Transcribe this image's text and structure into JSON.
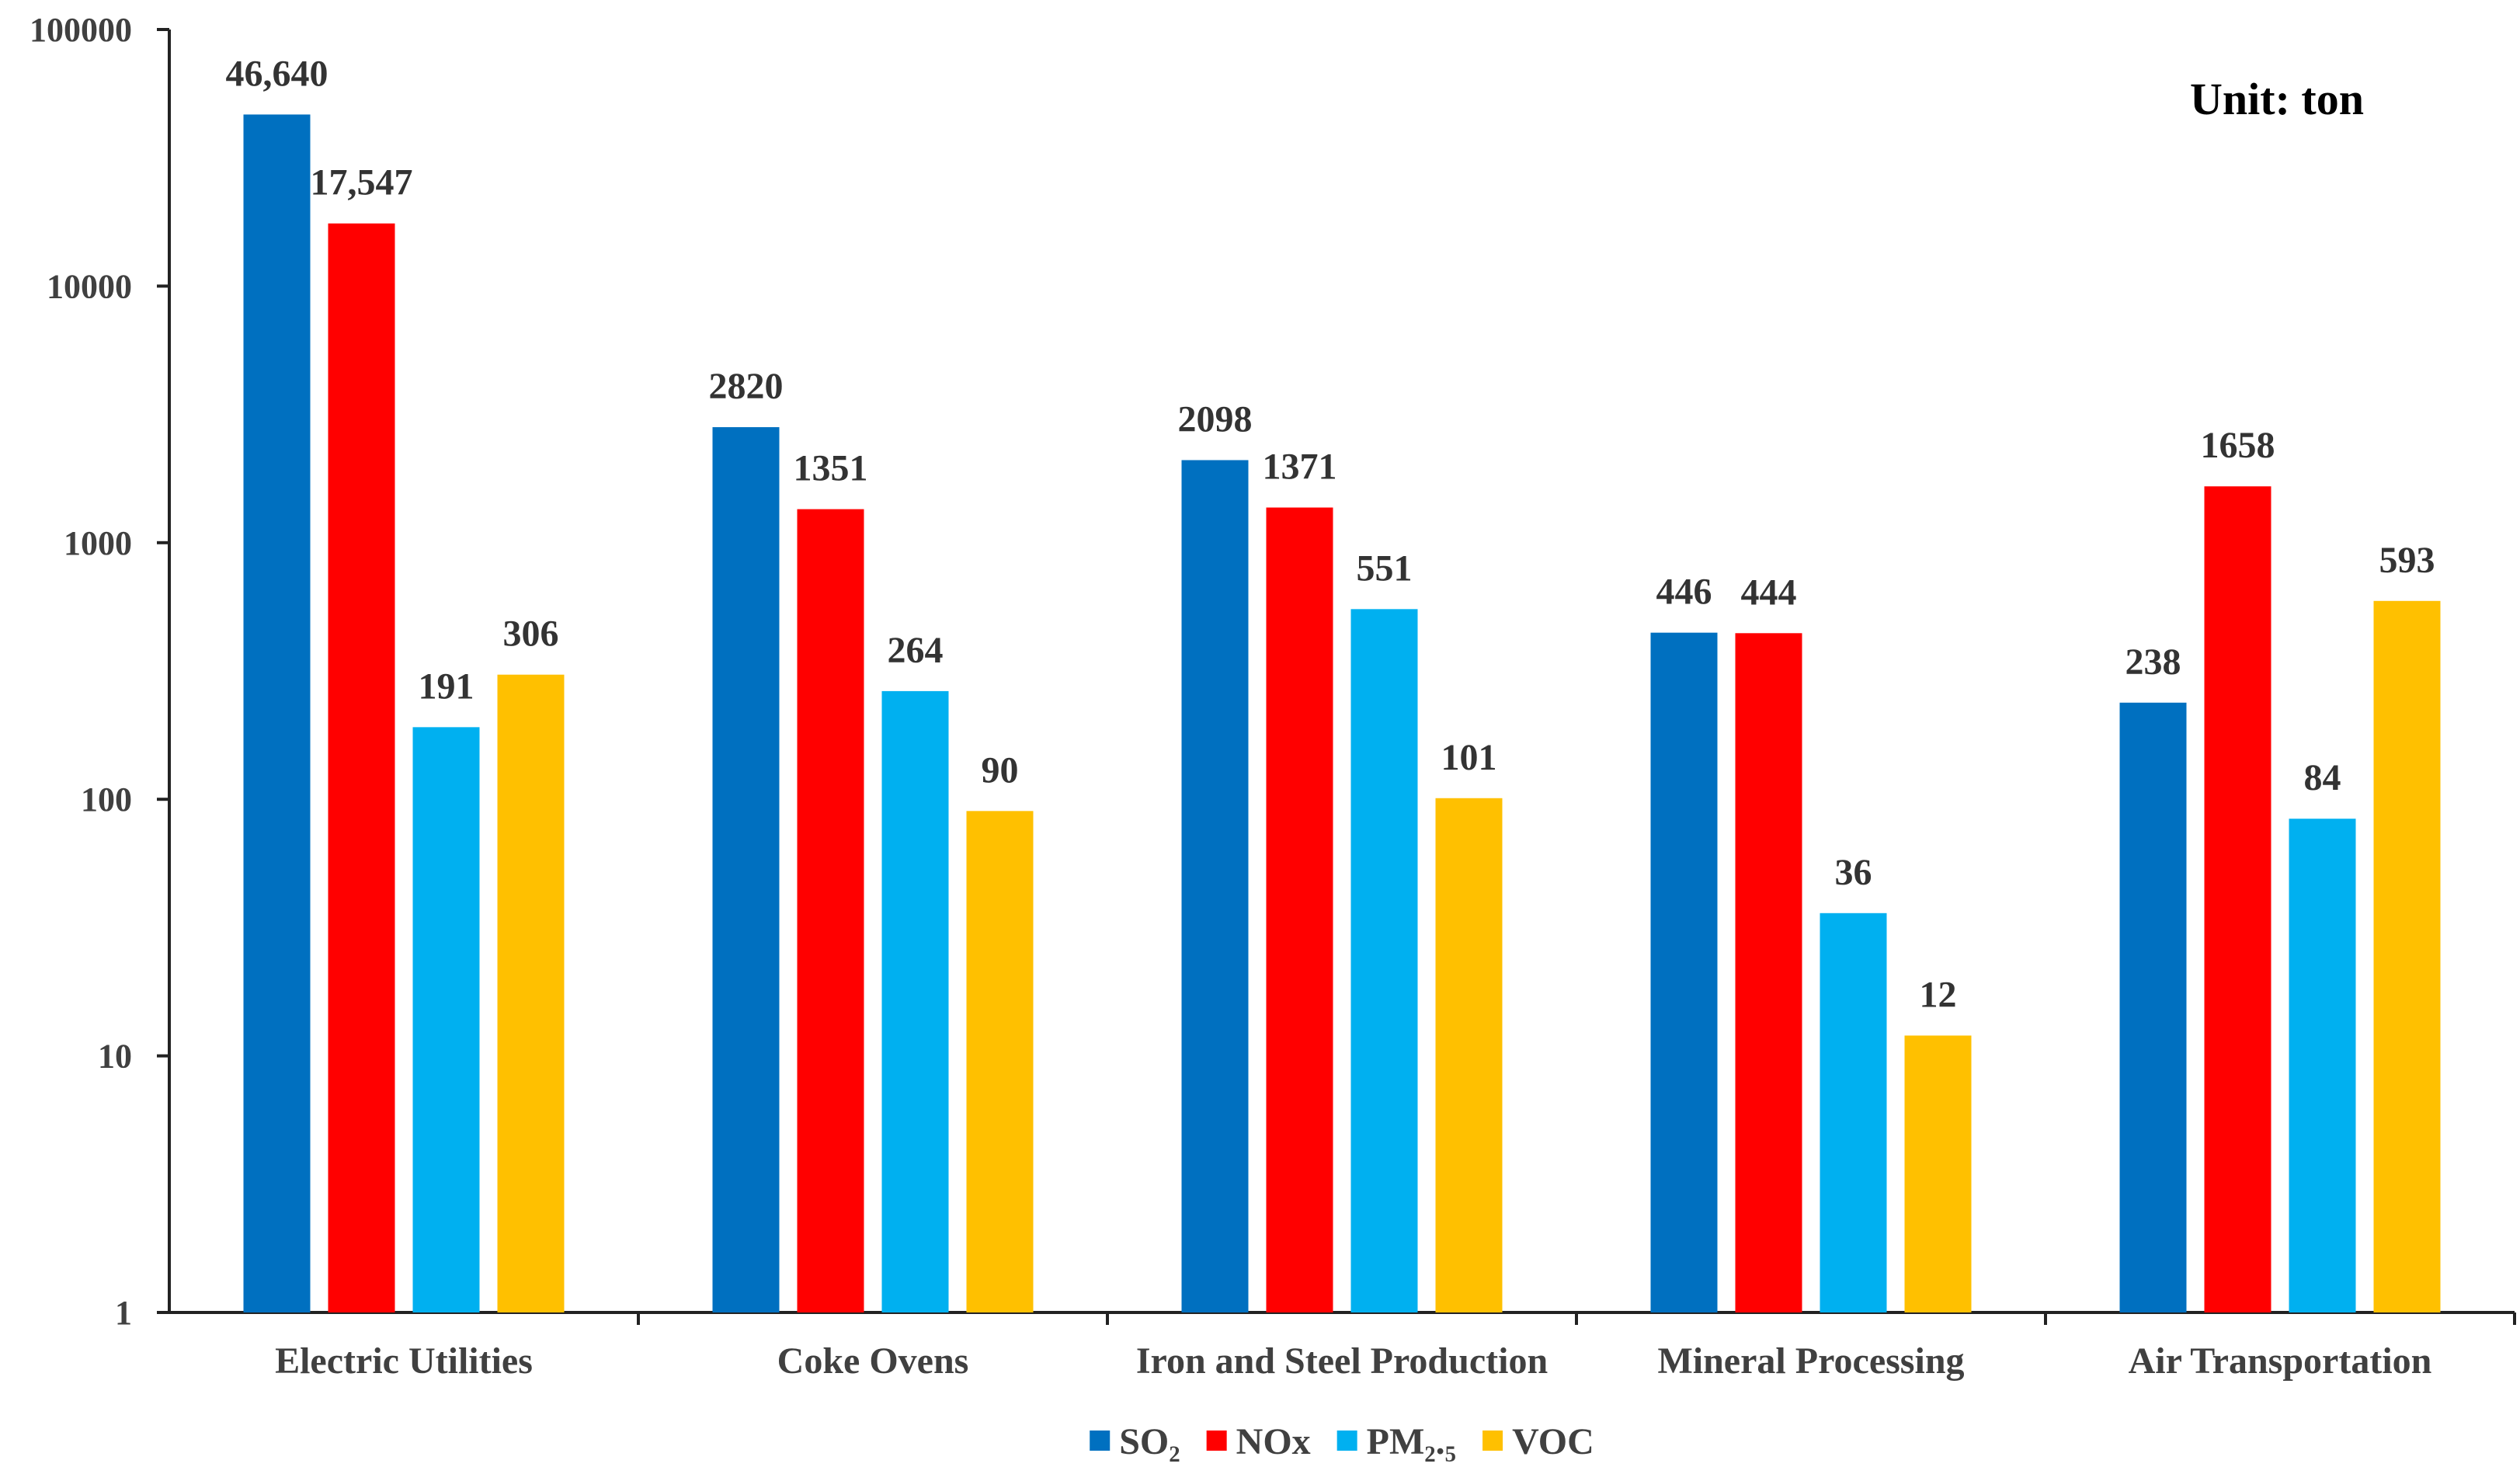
{
  "chart_data": {
    "type": "bar",
    "yscale": "log",
    "ylim": [
      1,
      100000
    ],
    "yticks": [
      "1",
      "10",
      "100",
      "1000",
      "10000",
      "100000"
    ],
    "ytick_values": [
      1,
      10,
      100,
      1000,
      10000,
      100000
    ],
    "categories": [
      "Electric Utilities",
      "Coke Ovens",
      "Iron and Steel Production",
      "Mineral Processing",
      "Air Transportation"
    ],
    "series": [
      {
        "name": "SO₂",
        "color": "#0070C0",
        "values": [
          46640,
          2820,
          2098,
          446,
          238
        ],
        "labels": [
          "46,640",
          "2820",
          "2098",
          "446",
          "238"
        ]
      },
      {
        "name": "NOx",
        "color": "#FF0000",
        "values": [
          17547,
          1351,
          1371,
          444,
          1658
        ],
        "labels": [
          "17,547",
          "1351",
          "1371",
          "444",
          "1658"
        ]
      },
      {
        "name": "PM₂.₅",
        "color": "#00B0F0",
        "values": [
          191,
          264,
          551,
          36,
          84
        ],
        "labels": [
          "191",
          "264",
          "551",
          "36",
          "84"
        ]
      },
      {
        "name": "VOC",
        "color": "#FFC000",
        "values": [
          306,
          90,
          101,
          12,
          593
        ],
        "labels": [
          "306",
          "90",
          "101",
          "12",
          "593"
        ]
      }
    ],
    "unit_label": "Unit: ton",
    "legend_position": "bottom-center",
    "grid": false
  }
}
